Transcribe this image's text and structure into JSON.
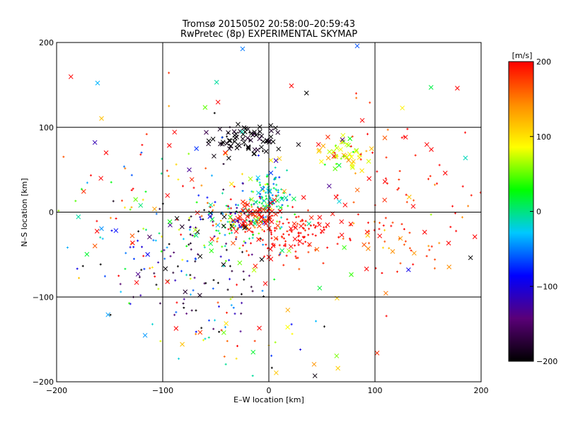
{
  "chart_data": {
    "type": "scatter",
    "title": "Tromsø 20150502 20:58:00–20:59:43",
    "subtitle": "RwPretec (8p) EXPERIMENTAL SKYMAP",
    "xlabel": "E–W location [km]",
    "ylabel": "N–S location [km]",
    "xlim": [
      -200,
      200
    ],
    "ylim": [
      -200,
      200
    ],
    "xticks": [
      -200,
      -100,
      0,
      100,
      200
    ],
    "yticks": [
      -200,
      -100,
      0,
      100,
      200
    ],
    "grid": true,
    "markers": [
      "x",
      "+"
    ],
    "colorbar": {
      "label": "[m/s]",
      "range": [
        -200,
        200
      ],
      "ticks": [
        200,
        100,
        0,
        -100,
        -200
      ],
      "colormap": "rainbow",
      "stops": [
        "#000000",
        "#5a0078",
        "#0000ff",
        "#00c8ff",
        "#00ff00",
        "#ffff00",
        "#ff8c00",
        "#ff0000"
      ]
    },
    "clusters": [
      {
        "x": -22,
        "y": 87,
        "sx": 18,
        "sy": 10,
        "v": -200,
        "vs": 15,
        "n": 80,
        "m": "x"
      },
      {
        "x": 0,
        "y": 20,
        "sx": 10,
        "sy": 14,
        "v": -10,
        "vs": 40,
        "n": 110,
        "m": "+"
      },
      {
        "x": -25,
        "y": -12,
        "sx": 18,
        "sy": 14,
        "v": 40,
        "vs": 110,
        "n": 130,
        "m": "+"
      },
      {
        "x": 22,
        "y": -25,
        "sx": 20,
        "sy": 14,
        "v": 195,
        "vs": 10,
        "n": 120,
        "m": "+"
      },
      {
        "x": -12,
        "y": -8,
        "sx": 12,
        "sy": 10,
        "v": 195,
        "vs": 10,
        "n": 50,
        "m": "x"
      },
      {
        "x": 70,
        "y": 72,
        "sx": 12,
        "sy": 10,
        "v": 80,
        "vs": 30,
        "n": 45,
        "m": "x"
      },
      {
        "x": -70,
        "y": -55,
        "sx": 40,
        "sy": 40,
        "v": -120,
        "vs": 90,
        "n": 140,
        "m": "+"
      },
      {
        "x": 125,
        "y": -25,
        "sx": 30,
        "sy": 20,
        "v": 175,
        "vs": 35,
        "n": 55,
        "m": "+"
      },
      {
        "x": 130,
        "y": 50,
        "sx": 45,
        "sy": 40,
        "v": 190,
        "vs": 25,
        "n": 50,
        "m": "+"
      },
      {
        "x": -110,
        "y": 10,
        "sx": 50,
        "sy": 50,
        "v": 90,
        "vs": 120,
        "n": 90,
        "m": "+"
      },
      {
        "x": 0,
        "y": 0,
        "sx": 110,
        "sy": 110,
        "v": 80,
        "vs": 160,
        "n": 120,
        "m": "x"
      },
      {
        "x": -40,
        "y": -150,
        "sx": 40,
        "sy": 30,
        "v": 40,
        "vs": 130,
        "n": 45,
        "m": "+"
      }
    ]
  }
}
